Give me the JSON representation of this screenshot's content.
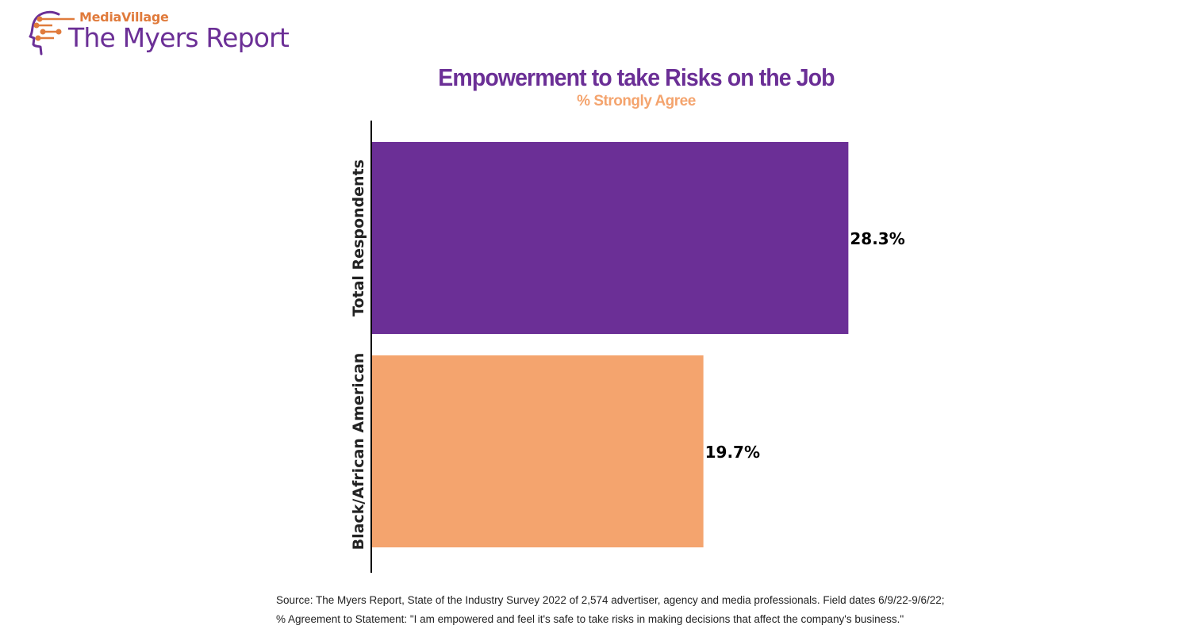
{
  "logo": {
    "brand": "MediaVillage",
    "name": "The Myers Report",
    "icon": "head-circuit-icon"
  },
  "colors": {
    "purple": "#6b2f96",
    "orange": "#f4a46e",
    "brand_orange": "#e07b3c"
  },
  "chart_data": {
    "type": "bar",
    "orientation": "horizontal",
    "title": "Empowerment to take Risks on the Job",
    "subtitle": "% Strongly Agree",
    "categories": [
      "Total Respondents",
      "Black/African American"
    ],
    "values": [
      28.3,
      19.7
    ],
    "value_labels": [
      "28.3%",
      "19.7%"
    ],
    "bar_colors": [
      "#6b2f96",
      "#f4a46e"
    ],
    "xlim": [
      0,
      32
    ],
    "grid": false,
    "legend": "none"
  },
  "source": {
    "line1": "Source:  The Myers Report, State of the Industry Survey 2022 of 2,574 advertiser, agency and media professionals.  Field dates 6/9/22-9/6/22;",
    "line2": "% Agreement to Statement: \"I am empowered and feel it's safe to take risks in making decisions that affect the company's business.\""
  }
}
